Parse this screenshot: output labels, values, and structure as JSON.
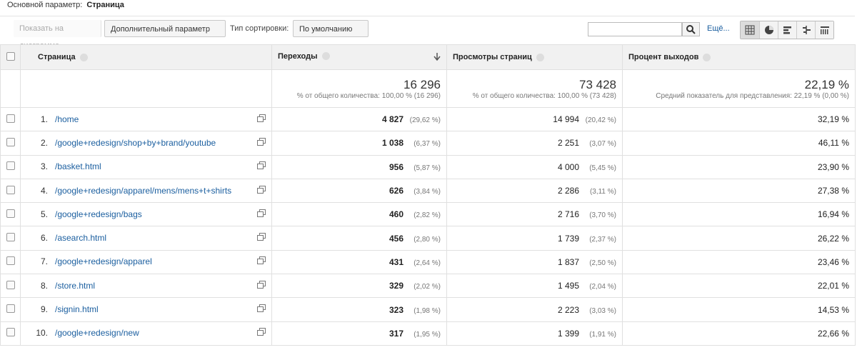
{
  "header": {
    "label": "Основной параметр:",
    "value": "Страница"
  },
  "toolbar": {
    "plot": "Показать на диаграмме",
    "secondary": "Дополнительный параметр",
    "sort_label": "Тип сортировки:",
    "sort_value": "По умолчанию",
    "more": "Ещё..."
  },
  "table": {
    "columns": [
      "Страница",
      "Переходы",
      "Просмотры страниц",
      "Процент выходов"
    ],
    "totals": [
      {
        "value": "16 296",
        "note": "% от общего количества: 100,00 % (16 296)"
      },
      {
        "value": "73 428",
        "note": "% от общего количества: 100,00 % (73 428)"
      },
      {
        "value": "22,19 %",
        "note": "Средний показатель для представления: 22,19 % (0,00 %)"
      }
    ],
    "rows": [
      [
        "1.",
        "/home",
        "4 827",
        "(29,62 %)",
        "14 994",
        "(20,42 %)",
        "32,19 %"
      ],
      [
        "2.",
        "/google+redesign/shop+by+brand/youtube",
        "1 038",
        "(6,37 %)",
        "2 251",
        "(3,07 %)",
        "46,11 %"
      ],
      [
        "3.",
        "/basket.html",
        "956",
        "(5,87 %)",
        "4 000",
        "(5,45 %)",
        "23,90 %"
      ],
      [
        "4.",
        "/google+redesign/apparel/mens/mens+t+shirts",
        "626",
        "(3,84 %)",
        "2 286",
        "(3,11 %)",
        "27,38 %"
      ],
      [
        "5.",
        "/google+redesign/bags",
        "460",
        "(2,82 %)",
        "2 716",
        "(3,70 %)",
        "16,94 %"
      ],
      [
        "6.",
        "/asearch.html",
        "456",
        "(2,80 %)",
        "1 739",
        "(2,37 %)",
        "26,22 %"
      ],
      [
        "7.",
        "/google+redesign/apparel",
        "431",
        "(2,64 %)",
        "1 837",
        "(2,50 %)",
        "23,46 %"
      ],
      [
        "8.",
        "/store.html",
        "329",
        "(2,02 %)",
        "1 495",
        "(2,04 %)",
        "22,01 %"
      ],
      [
        "9.",
        "/signin.html",
        "323",
        "(1,98 %)",
        "2 223",
        "(3,03 %)",
        "14,53 %"
      ],
      [
        "10.",
        "/google+redesign/new",
        "317",
        "(1,95 %)",
        "1 399",
        "(1,91 %)",
        "22,66 %"
      ]
    ]
  }
}
